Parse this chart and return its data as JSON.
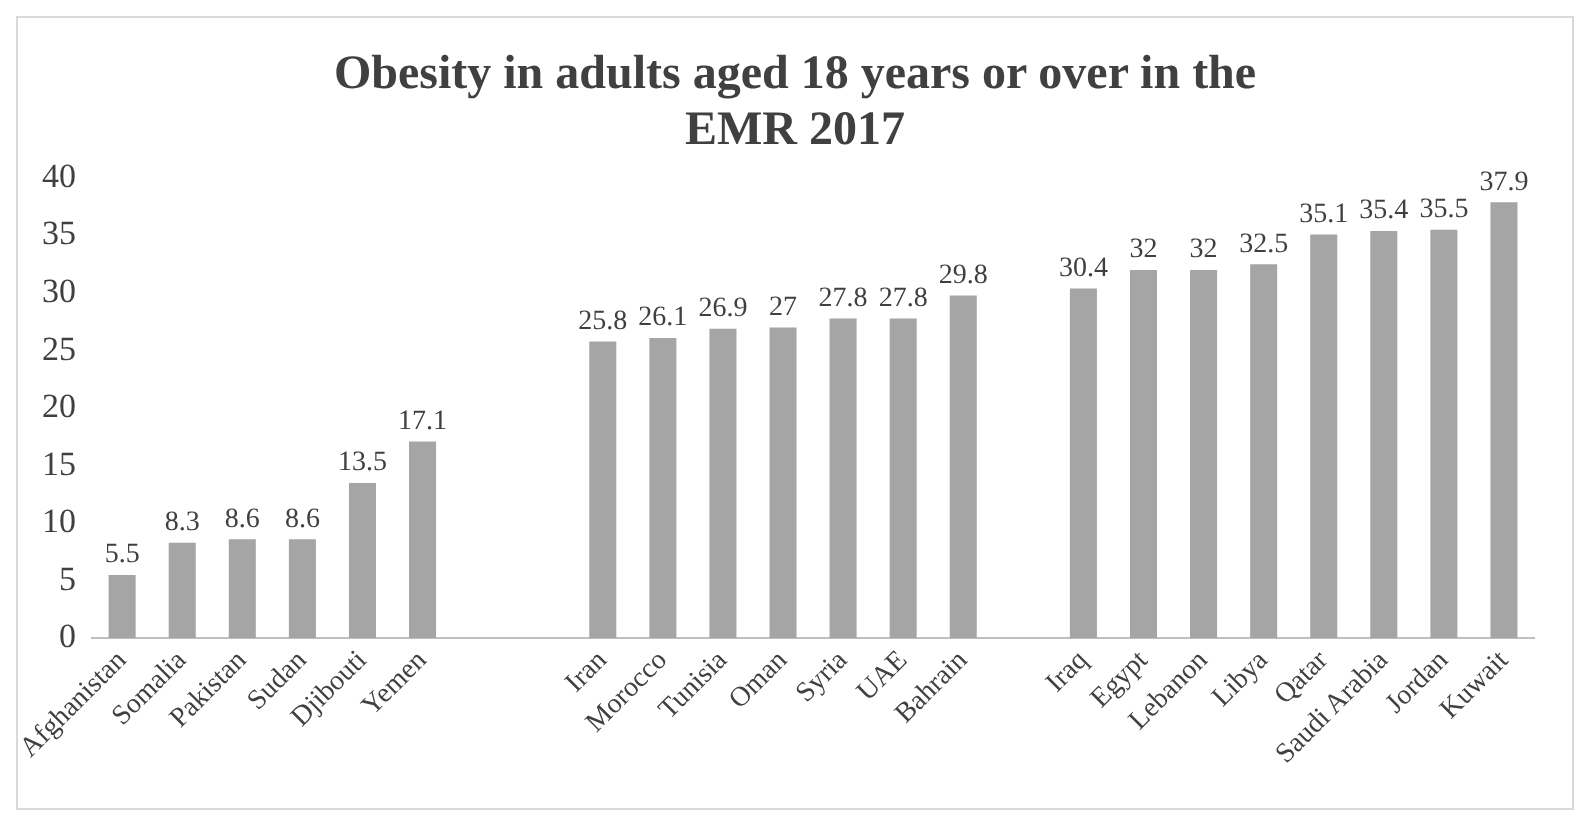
{
  "chart_data": {
    "type": "bar",
    "title": "Obesity in adults aged 18 years or over in the EMR 2017",
    "categories": [
      "Afghanistan",
      "Somalia",
      "Pakistan",
      "Sudan",
      "Djibouti",
      "Yemen",
      null,
      null,
      "Iran",
      "Morocco",
      "Tunisia",
      "Oman",
      "Syria",
      "UAE",
      "Bahrain",
      null,
      "Iraq",
      "Egypt",
      "Lebanon",
      "Libya",
      "Qatar",
      "Saudi Arabia",
      "Jordan",
      "Kuwait"
    ],
    "values": [
      5.5,
      8.3,
      8.6,
      8.6,
      13.5,
      17.1,
      null,
      null,
      25.8,
      26.1,
      26.9,
      27,
      27.8,
      27.8,
      29.8,
      null,
      30.4,
      32,
      32,
      32.5,
      35.1,
      35.4,
      35.5,
      37.9
    ],
    "color": "#a5a5a5",
    "ylim": [
      0,
      40
    ],
    "yticks": [
      0,
      5,
      10,
      15,
      20,
      25,
      30,
      35,
      40
    ],
    "grid": false,
    "legend": false,
    "data_labels": true
  }
}
